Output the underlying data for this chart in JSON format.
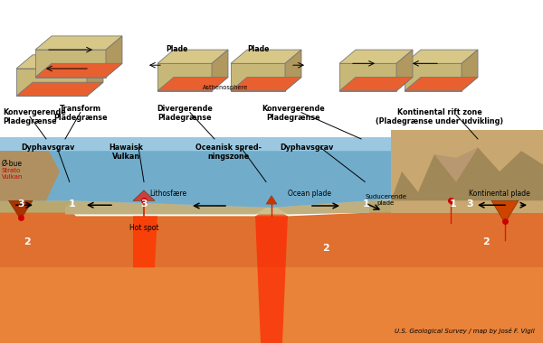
{
  "bg_color": "#ffffff",
  "credit_text": "U.S. Geological Survey / map by José F. Vigil",
  "labels": {
    "konvergerende": "Konvergerende\nPladegrænse",
    "transform": "Transform\nPladegrænse",
    "divergerende": "Divergerende\nPladegrænse",
    "konvergerende2": "Konvergerende\nPladegrænse",
    "rift": "Kontinental rift zone\n(Pladegrænse under udvikling)",
    "dyphavsgrav1": "Dyphavsgrav",
    "o_bue": "Ø-bue",
    "strato": "Strato\nVulkan",
    "hawai": "Hawaisk\nVulkan",
    "oceanisk": "Oceanisk spred-\nningszone",
    "lithosfaere": "Lithosfære",
    "hotspot": "Hot spot",
    "dyphavsgrav2": "Dyphavsgrav",
    "ocean_plade": "Ocean plade",
    "suducerende": "Suducerende\nplade",
    "kontinental": "Kontinental plade",
    "plade1": "Plade",
    "plade2": "Plade",
    "asthenosphere": "Asthenosphere"
  }
}
